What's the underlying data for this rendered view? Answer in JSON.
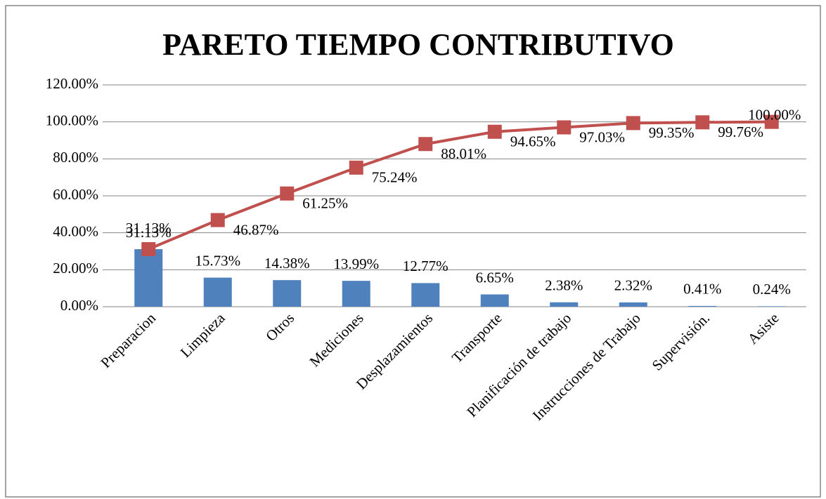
{
  "chart_data": {
    "type": "bar",
    "title": "PARETO TIEMPO CONTRIBUTIVO",
    "categories": [
      "Preparacion",
      "Limpieza",
      "Otros",
      "Mediciones",
      "Desplazamientos",
      "Transporte",
      "Planificación de trabajo",
      "Instrucciones de Trabajo",
      "Supervisión.",
      "Asiste"
    ],
    "series": [
      {
        "type": "bar",
        "color": "#4f81bd",
        "values": [
          31.13,
          15.73,
          14.38,
          13.99,
          12.77,
          6.65,
          2.38,
          2.32,
          0.41,
          0.24
        ],
        "value_labels": [
          "31.13%",
          "15.73%",
          "14.38%",
          "13.99%",
          "12.77%",
          "6.65%",
          "2.38%",
          "2.32%",
          "0.41%",
          "0.24%"
        ]
      },
      {
        "type": "line",
        "color": "#c0504d",
        "values": [
          31.13,
          46.87,
          61.25,
          75.24,
          88.01,
          94.65,
          97.03,
          99.35,
          99.76,
          100.0
        ],
        "value_labels": [
          "31.13%",
          "46.87%",
          "61.25%",
          "75.24%",
          "88.01%",
          "94.65%",
          "97.03%",
          "99.35%",
          "99.76%",
          "100.00%"
        ]
      }
    ],
    "ylim": [
      0,
      120
    ],
    "yticks": [
      {
        "value": 0,
        "label": "0.00%"
      },
      {
        "value": 20,
        "label": "20.00%"
      },
      {
        "value": 40,
        "label": "40.00%"
      },
      {
        "value": 60,
        "label": "60.00%"
      },
      {
        "value": 80,
        "label": "80.00%"
      },
      {
        "value": 100,
        "label": "100.00%"
      },
      {
        "value": 120,
        "label": "120.00%"
      }
    ],
    "grid": true
  }
}
